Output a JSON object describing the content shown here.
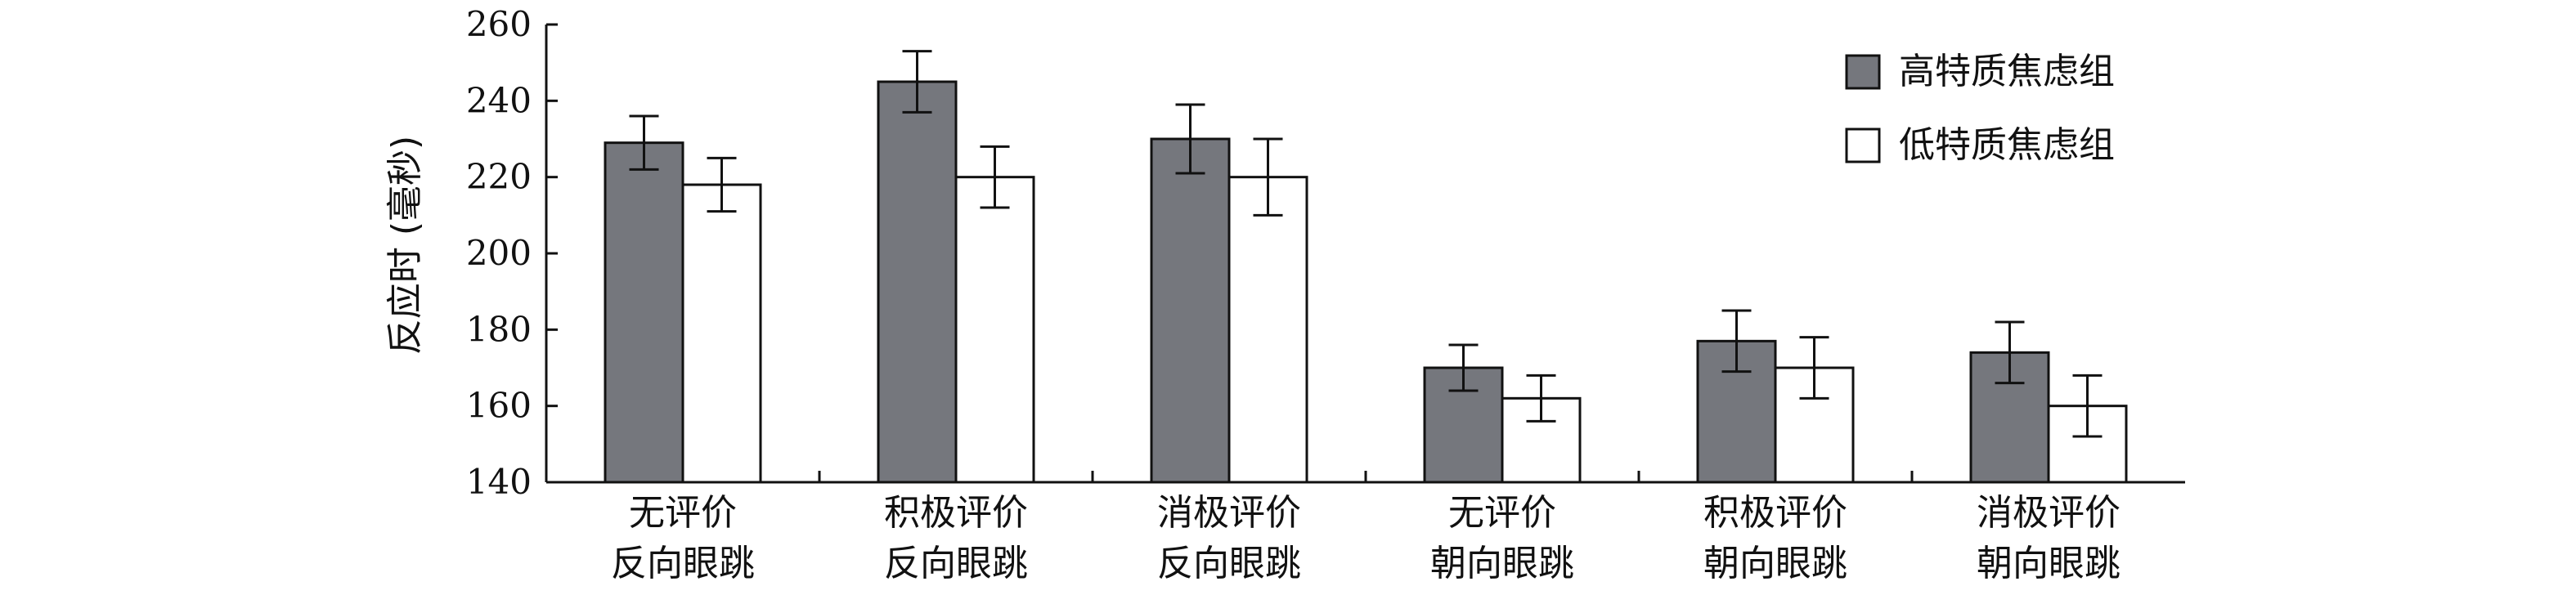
{
  "chart_data": {
    "type": "bar",
    "title": "",
    "xlabel": "",
    "ylabel": "反应时 (毫秒)",
    "ylim": [
      140,
      260
    ],
    "yticks": [
      140,
      160,
      180,
      200,
      220,
      240,
      260
    ],
    "grid": false,
    "legend_position": "top-right",
    "categories": [
      [
        "无评价",
        "反向眼跳"
      ],
      [
        "积极评价",
        "反向眼跳"
      ],
      [
        "消极评价",
        "反向眼跳"
      ],
      [
        "无评价",
        "朝向眼跳"
      ],
      [
        "积极评价",
        "朝向眼跳"
      ],
      [
        "消极评价",
        "朝向眼跳"
      ]
    ],
    "series": [
      {
        "name": "高特质焦虑组",
        "color": "#75777d",
        "values": [
          229,
          245,
          230,
          170,
          177,
          174
        ],
        "errors": [
          7,
          8,
          9,
          6,
          8,
          8
        ]
      },
      {
        "name": "低特质焦虑组",
        "color": "#ffffff",
        "values": [
          218,
          220,
          220,
          162,
          170,
          160
        ],
        "errors": [
          7,
          8,
          10,
          6,
          8,
          8
        ]
      }
    ]
  }
}
